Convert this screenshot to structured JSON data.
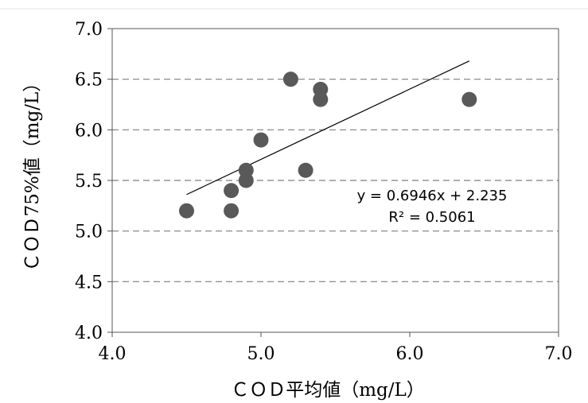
{
  "chart_data": {
    "type": "scatter",
    "title": "",
    "xlabel": "ＣＯＤ平均値（mg/L）",
    "ylabel": "ＣＯＤ75%値（mg/L）",
    "xlim": [
      4.0,
      7.0
    ],
    "ylim": [
      4.0,
      7.0
    ],
    "x_ticks": [
      "4.0",
      "5.0",
      "6.0",
      "7.0"
    ],
    "y_ticks": [
      "4.0",
      "4.5",
      "5.0",
      "5.5",
      "6.0",
      "6.5",
      "7.0"
    ],
    "grid": "horizontal dashed",
    "series": [
      {
        "x": [
          4.5,
          4.8,
          4.8,
          4.9,
          4.9,
          5.0,
          5.2,
          5.3,
          5.4,
          5.4,
          6.4
        ],
        "y": [
          5.2,
          5.2,
          5.4,
          5.5,
          5.6,
          5.9,
          6.5,
          5.6,
          6.3,
          6.4,
          6.3
        ],
        "color": "#595959"
      }
    ],
    "trendline": {
      "slope": 0.6946,
      "intercept": 2.235,
      "x_range": [
        4.5,
        6.4
      ],
      "color": "#000000"
    },
    "annotations": {
      "equation": "y = 0.6946x + 2.235",
      "r_squared": "R² = 0.5061"
    }
  }
}
